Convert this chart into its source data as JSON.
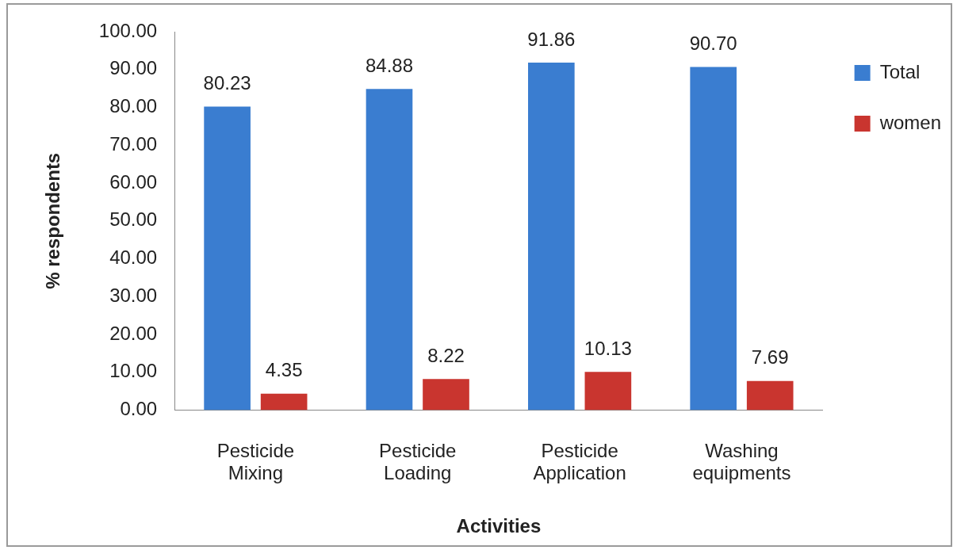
{
  "chart_data": {
    "type": "bar",
    "xlabel": "Activities",
    "ylabel": "% respondents",
    "categories": [
      "Pesticide Mixing",
      "Pesticide Loading",
      "Pesticide Application",
      "Washing equipments"
    ],
    "series": [
      {
        "name": "Total",
        "color": "#3a7dd0",
        "values": [
          80.23,
          84.88,
          91.86,
          90.7
        ],
        "value_labels": [
          "80.23",
          "84.88",
          "91.86",
          "90.70"
        ]
      },
      {
        "name": "women",
        "color": "#c9352f",
        "values": [
          4.35,
          8.22,
          10.13,
          7.69
        ],
        "value_labels": [
          "4.35",
          "8.22",
          "10.13",
          "7.69"
        ]
      }
    ],
    "ylim": [
      0,
      100
    ],
    "yticks": [
      {
        "value": 0,
        "label": "0.00"
      },
      {
        "value": 10,
        "label": "10.00"
      },
      {
        "value": 20,
        "label": "20.00"
      },
      {
        "value": 30,
        "label": "30.00"
      },
      {
        "value": 40,
        "label": "40.00"
      },
      {
        "value": 50,
        "label": "50.00"
      },
      {
        "value": 60,
        "label": "60.00"
      },
      {
        "value": 70,
        "label": "70.00"
      },
      {
        "value": 80,
        "label": "80.00"
      },
      {
        "value": 90,
        "label": "90.00"
      },
      {
        "value": 100,
        "label": "100.00"
      }
    ],
    "grid": false,
    "legend": "top right"
  }
}
